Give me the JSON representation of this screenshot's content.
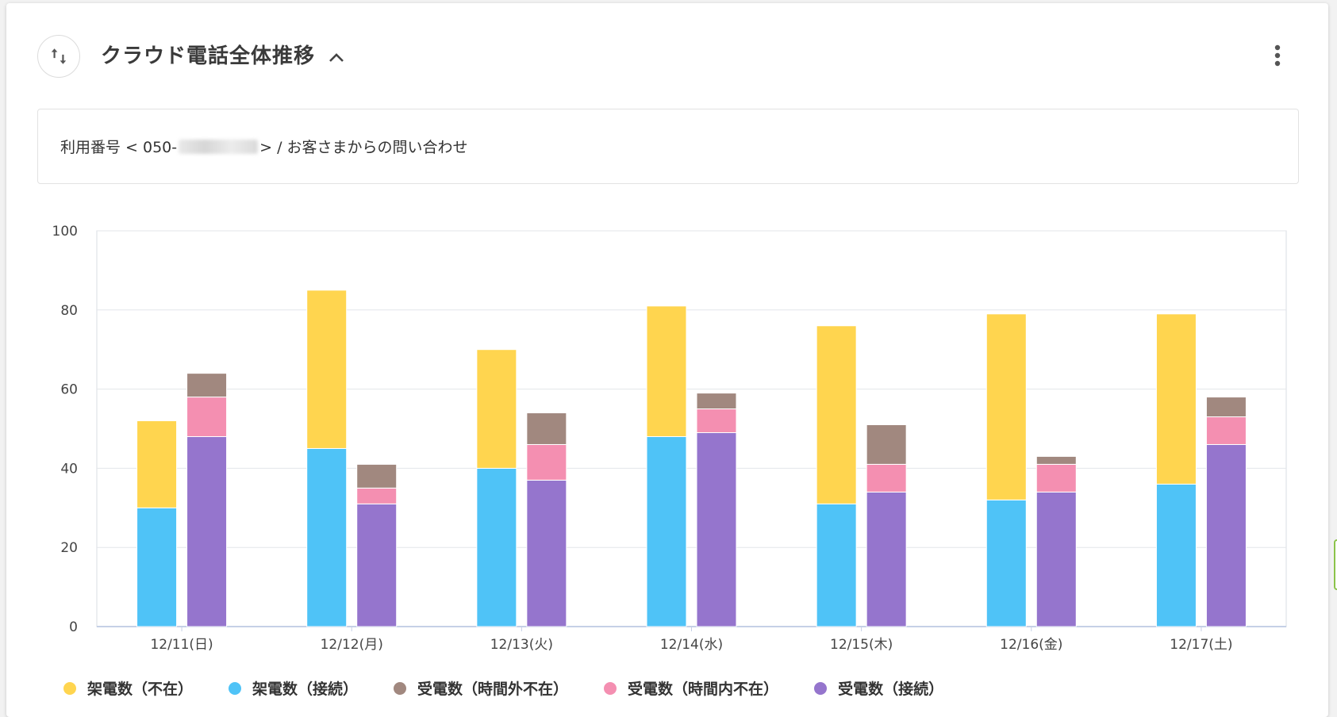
{
  "header": {
    "title": "クラウド電話全体推移",
    "swap_icon": "swap-vertical-icon",
    "collapse_icon": "chevron-up-icon",
    "menu_icon": "more-vert-icon"
  },
  "info": {
    "prefix": "利用番号 < 050-",
    "suffix": " > / お客さまからの問い合わせ"
  },
  "chart_data": {
    "type": "bar",
    "stacked": true,
    "categories": [
      "12/11(日)",
      "12/12(月)",
      "12/13(火)",
      "12/14(水)",
      "12/15(木)",
      "12/16(金)",
      "12/17(土)"
    ],
    "ylim": [
      0,
      100
    ],
    "yticks": [
      0,
      20,
      40,
      60,
      80,
      100
    ],
    "grid": true,
    "legend_position": "bottom-left",
    "stacks": [
      {
        "name": "架電",
        "series": [
          {
            "name": "架電数（接続）",
            "color": "#4FC3F7",
            "values": [
              30,
              45,
              40,
              48,
              31,
              32,
              36
            ]
          },
          {
            "name": "架電数（不在）",
            "color": "#FFD54F",
            "values": [
              22,
              40,
              30,
              33,
              45,
              47,
              43
            ]
          }
        ]
      },
      {
        "name": "受電",
        "series": [
          {
            "name": "受電数（接続）",
            "color": "#9575CD",
            "values": [
              48,
              31,
              37,
              49,
              34,
              34,
              46
            ]
          },
          {
            "name": "受電数（時間内不在）",
            "color": "#F48FB1",
            "values": [
              10,
              4,
              9,
              6,
              7,
              7,
              7
            ]
          },
          {
            "name": "受電数（時間外不在）",
            "color": "#A1887F",
            "values": [
              6,
              6,
              8,
              4,
              10,
              2,
              5
            ]
          }
        ]
      }
    ],
    "legend": [
      {
        "label": "架電数（不在）",
        "color": "#FFD54F"
      },
      {
        "label": "架電数（接続）",
        "color": "#4FC3F7"
      },
      {
        "label": "受電数（時間外不在）",
        "color": "#A1887F"
      },
      {
        "label": "受電数（時間内不在）",
        "color": "#F48FB1"
      },
      {
        "label": "受電数（接続）",
        "color": "#9575CD"
      }
    ]
  }
}
